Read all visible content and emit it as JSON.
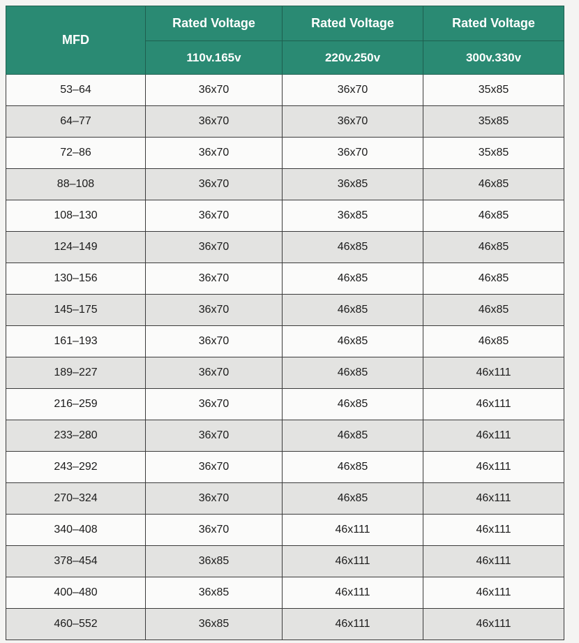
{
  "header": {
    "mfd_label": "MFD",
    "rated_voltage_label": "Rated Voltage",
    "voltages": [
      "110v.165v",
      "220v.250v",
      "300v.330v"
    ]
  },
  "rows": [
    {
      "mfd": "53–64",
      "v1": "36x70",
      "v2": "36x70",
      "v3": "35x85"
    },
    {
      "mfd": "64–77",
      "v1": "36x70",
      "v2": "36x70",
      "v3": "35x85"
    },
    {
      "mfd": "72–86",
      "v1": "36x70",
      "v2": "36x70",
      "v3": "35x85"
    },
    {
      "mfd": "88–108",
      "v1": "36x70",
      "v2": "36x85",
      "v3": "46x85"
    },
    {
      "mfd": "108–130",
      "v1": "36x70",
      "v2": "36x85",
      "v3": "46x85"
    },
    {
      "mfd": "124–149",
      "v1": "36x70",
      "v2": "46x85",
      "v3": "46x85"
    },
    {
      "mfd": "130–156",
      "v1": "36x70",
      "v2": "46x85",
      "v3": "46x85"
    },
    {
      "mfd": "145–175",
      "v1": "36x70",
      "v2": "46x85",
      "v3": "46x85"
    },
    {
      "mfd": "161–193",
      "v1": "36x70",
      "v2": "46x85",
      "v3": "46x85"
    },
    {
      "mfd": "189–227",
      "v1": "36x70",
      "v2": "46x85",
      "v3": "46x111"
    },
    {
      "mfd": "216–259",
      "v1": "36x70",
      "v2": "46x85",
      "v3": "46x111"
    },
    {
      "mfd": "233–280",
      "v1": "36x70",
      "v2": "46x85",
      "v3": "46x111"
    },
    {
      "mfd": "243–292",
      "v1": "36x70",
      "v2": "46x85",
      "v3": "46x111"
    },
    {
      "mfd": "270–324",
      "v1": "36x70",
      "v2": "46x85",
      "v3": "46x111"
    },
    {
      "mfd": "340–408",
      "v1": "36x70",
      "v2": "46x111",
      "v3": "46x111"
    },
    {
      "mfd": "378–454",
      "v1": "36x85",
      "v2": "46x111",
      "v3": "46x111"
    },
    {
      "mfd": "400–480",
      "v1": "36x85",
      "v2": "46x111",
      "v3": "46x111"
    },
    {
      "mfd": "460–552",
      "v1": "36x85",
      "v2": "46x111",
      "v3": "46x111"
    }
  ]
}
